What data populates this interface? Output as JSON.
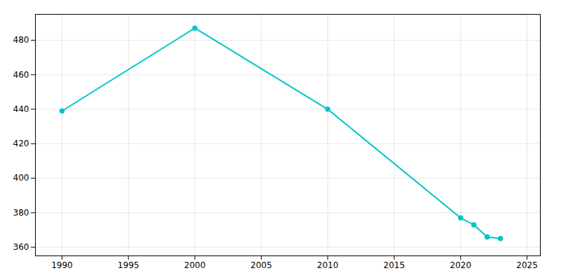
{
  "chart_data": {
    "type": "line",
    "x": [
      1990,
      2000,
      2010,
      2020,
      2021,
      2022,
      2023
    ],
    "values": [
      439,
      487,
      440,
      377,
      373,
      366,
      365
    ],
    "color": "#00C5C8",
    "marker": "circle",
    "xlim": [
      1988,
      2026
    ],
    "ylim": [
      355,
      495
    ],
    "xticks": [
      1990,
      1995,
      2000,
      2005,
      2010,
      2015,
      2020,
      2025
    ],
    "yticks": [
      360,
      380,
      400,
      420,
      440,
      460,
      480
    ],
    "grid": true
  }
}
